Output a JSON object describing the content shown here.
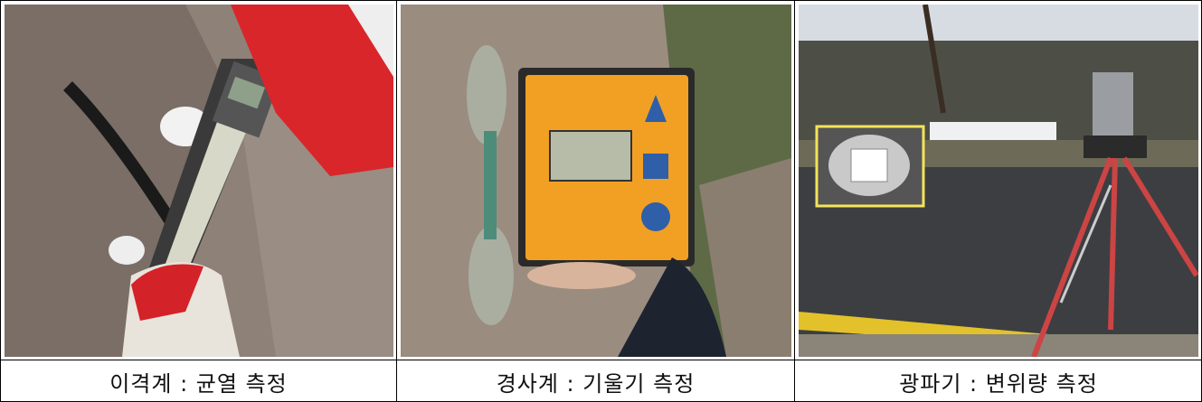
{
  "figure": {
    "panels": [
      {
        "caption": "이격계 : 균열 측정"
      },
      {
        "caption": "경사계 : 기울기 측정"
      },
      {
        "caption": "광파기 : 변위량 측정"
      }
    ]
  }
}
